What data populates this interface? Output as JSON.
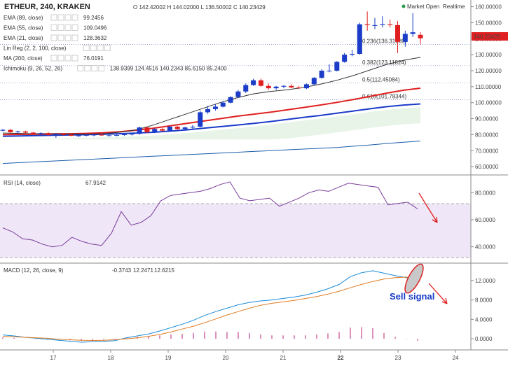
{
  "header": {
    "symbol": "ETHEUR, 240, KRAKEN",
    "ohlc": "O 142.42002  H 144.02000  L 136.50002  C 140.23429",
    "market_status": "Market Open",
    "realtime": "Realtime",
    "last_price": "140.23429"
  },
  "indicators": [
    {
      "name": "EMA (89, close)",
      "value": "99.2456",
      "color": "#1a3cc8"
    },
    {
      "name": "EMA (55, close)",
      "value": "109.0496",
      "color": "#e02020"
    },
    {
      "name": "EMA (21, close)",
      "value": "128.3632",
      "color": "#333333"
    },
    {
      "name": "Lin Reg (2, 2, 100, close)",
      "value": "",
      "color": "#bbbbbb"
    },
    {
      "name": "MA (200, close)",
      "value": "76.0191",
      "color": "#1a5caa"
    },
    {
      "name": "Ichimoku (9, 26, 52, 26)",
      "value": "138.9399  124.4516  140.2343  85.6150  85.2400",
      "color": "#1a5caa"
    }
  ],
  "fib": [
    {
      "label": "0.236(136.31689)",
      "value": 136.31689
    },
    {
      "label": "0.382(123.11824)",
      "value": 123.11824
    },
    {
      "label": "0.5(112.45084)",
      "value": 112.45084
    },
    {
      "label": "0.618(101.78344)",
      "value": 101.78344
    }
  ],
  "rsi_panel": {
    "label": "RSI (14, close)",
    "value": "67.9142"
  },
  "macd_panel": {
    "label": "MACD (12, 26, close, 9)",
    "v1": "-0.3743",
    "v2": "12.2471",
    "v3": "12.6215"
  },
  "annotation": {
    "text": "Sell signal"
  },
  "chart_data": {
    "type": "line",
    "x_ticks": [
      "17",
      "18",
      "19",
      "20",
      "21",
      "22",
      "23",
      "24"
    ],
    "price_axis": {
      "ticks": [
        "60.00000",
        "70.00000",
        "80.00000",
        "90.00000",
        "100.00000",
        "110.00000",
        "120.00000",
        "130.00000",
        "140.00000",
        "150.00000",
        "160.00000"
      ],
      "ylim": [
        57,
        162
      ]
    },
    "rsi_axis": {
      "ticks": [
        "40.0000",
        "60.0000",
        "80.0000"
      ],
      "ylim": [
        30,
        90
      ],
      "band": [
        30,
        70
      ]
    },
    "macd_axis": {
      "ticks": [
        "0.0000",
        "4.0000",
        "8.0000",
        "12.0000"
      ],
      "ylim": [
        -2,
        15
      ]
    },
    "candles": [
      [
        82.5,
        83.5,
        82,
        83
      ],
      [
        83,
        83.5,
        81,
        81.5
      ],
      [
        81.5,
        82.5,
        80.5,
        82
      ],
      [
        82,
        82.5,
        81,
        81.3
      ],
      [
        81.3,
        81.8,
        80,
        80.5
      ],
      [
        80.5,
        81.5,
        79.5,
        81
      ],
      [
        81,
        81.5,
        79.5,
        79.8
      ],
      [
        79.8,
        81,
        78,
        80.2
      ],
      [
        80.2,
        81,
        79.5,
        80
      ],
      [
        80,
        80.5,
        79,
        79.3
      ],
      [
        79.3,
        80,
        78.5,
        79.5
      ],
      [
        79.5,
        80.2,
        79,
        79.8
      ],
      [
        79.8,
        80.5,
        79,
        80
      ],
      [
        80,
        80.5,
        79.2,
        79.5
      ],
      [
        79.5,
        80,
        79,
        79.6
      ],
      [
        79.6,
        80.2,
        79,
        79.8
      ],
      [
        79.8,
        80.5,
        79.2,
        80.2
      ],
      [
        80.2,
        81,
        79.5,
        80.5
      ],
      [
        80.5,
        85,
        80,
        84.5
      ],
      [
        84.5,
        85,
        81,
        81.5
      ],
      [
        81.5,
        84,
        81,
        83.5
      ],
      [
        83.5,
        84,
        82,
        82.5
      ],
      [
        82.5,
        85.5,
        82,
        85
      ],
      [
        85,
        85.5,
        83,
        83.5
      ],
      [
        83.5,
        85,
        83,
        84.5
      ],
      [
        84.5,
        86,
        83.5,
        85
      ],
      [
        85,
        95,
        84.5,
        94
      ],
      [
        94,
        98,
        93,
        96
      ],
      [
        96,
        99,
        95,
        97.5
      ],
      [
        97.5,
        101,
        97,
        100
      ],
      [
        100,
        104,
        99.5,
        103.5
      ],
      [
        103.5,
        108,
        103,
        107
      ],
      [
        107,
        112,
        106,
        111
      ],
      [
        111,
        115,
        110.5,
        114
      ],
      [
        114,
        115,
        110,
        110.5
      ],
      [
        110.5,
        112,
        108,
        109
      ],
      [
        109,
        110.5,
        108,
        110
      ],
      [
        110,
        111,
        109,
        110.5
      ],
      [
        110.5,
        111.5,
        109,
        109.5
      ],
      [
        109.5,
        110.5,
        108.5,
        109
      ],
      [
        109,
        112,
        108.5,
        111.5
      ],
      [
        111.5,
        116,
        111,
        115.5
      ],
      [
        115.5,
        121,
        115,
        120
      ],
      [
        120,
        124,
        119,
        120
      ],
      [
        120,
        126,
        119.5,
        125.5
      ],
      [
        125.5,
        131,
        125,
        130
      ],
      [
        130,
        133,
        129,
        130.5
      ],
      [
        130.5,
        150,
        130,
        149
      ],
      [
        149,
        157,
        145,
        148.5
      ],
      [
        148.5,
        153,
        146,
        148.5
      ],
      [
        148.5,
        154,
        147,
        149
      ],
      [
        149,
        152,
        147,
        148.5
      ],
      [
        148.5,
        151,
        131,
        138
      ],
      [
        138,
        145,
        135,
        143
      ],
      [
        143,
        156,
        141,
        144
      ],
      [
        142.42,
        144.02,
        136.5,
        140.23
      ]
    ],
    "series": [
      {
        "name": "EMA (89, close)",
        "values": [
          79,
          79.2,
          79.4,
          79.6,
          79.8,
          80,
          80.3,
          80.6,
          81,
          81.5,
          82.2,
          83,
          84,
          85,
          86,
          87,
          88.2,
          89.5,
          90.8,
          92,
          93.4,
          94.8,
          96.2,
          97.5,
          98.5,
          99.2
        ]
      },
      {
        "name": "EMA (55, close)",
        "values": [
          80,
          80.2,
          80.3,
          80.5,
          80.6,
          80.8,
          81.2,
          81.8,
          82.8,
          84,
          85.5,
          87,
          88.5,
          90,
          91.5,
          92.8,
          94,
          95.5,
          97,
          98.5,
          100.2,
          102,
          104,
          106,
          107.8,
          109.05
        ]
      },
      {
        "name": "EMA (21, close)",
        "values": [
          81,
          80.8,
          80.6,
          80.5,
          80.4,
          80.3,
          80.6,
          81.5,
          83,
          86,
          89.5,
          93,
          96.5,
          100,
          103,
          105.5,
          107,
          108,
          109.5,
          111.5,
          114,
          117,
          120.5,
          124,
          126.5,
          128.36
        ]
      },
      {
        "name": "MA (200, close)",
        "values": [
          62,
          62.5,
          63,
          63.5,
          64,
          64.5,
          65,
          65.5,
          66,
          66.5,
          67,
          67.5,
          68,
          68.5,
          69,
          69.5,
          70,
          70.5,
          71,
          71.5,
          72,
          72.8,
          73.6,
          74.5,
          75.3,
          76.02
        ]
      }
    ],
    "rsi": [
      54,
      51,
      46,
      45,
      42,
      40,
      41,
      47,
      44,
      42,
      41,
      50,
      66,
      56,
      58,
      63,
      74,
      78,
      79,
      80,
      81,
      83,
      86,
      88,
      76,
      74,
      75,
      76,
      70,
      73,
      76,
      80,
      82,
      81,
      84,
      87,
      86,
      85,
      84,
      71,
      72,
      73,
      68
    ],
    "macd_line": [
      0.8,
      0.6,
      0.3,
      0.1,
      -0.1,
      -0.3,
      -0.5,
      -0.7,
      -0.6,
      -0.5,
      -0.4,
      0.2,
      0.6,
      1.0,
      1.6,
      2.3,
      3.0,
      3.8,
      4.8,
      5.6,
      6.3,
      7.0,
      7.5,
      7.8,
      8.0,
      8.3,
      8.6,
      9.0,
      9.6,
      10.3,
      11.2,
      12.8,
      13.6,
      14.0,
      13.5,
      13.0,
      12.6,
      12.2
    ],
    "signal_line": [
      0.5,
      0.4,
      0.3,
      0.2,
      0.1,
      -0.1,
      -0.2,
      -0.3,
      -0.35,
      -0.3,
      -0.2,
      0,
      0.2,
      0.5,
      0.9,
      1.4,
      2.0,
      2.6,
      3.3,
      4.1,
      4.9,
      5.6,
      6.3,
      6.9,
      7.3,
      7.6,
      7.9,
      8.3,
      8.7,
      9.2,
      9.8,
      10.5,
      11.2,
      11.8,
      12.3,
      12.6,
      12.7,
      12.6
    ]
  }
}
